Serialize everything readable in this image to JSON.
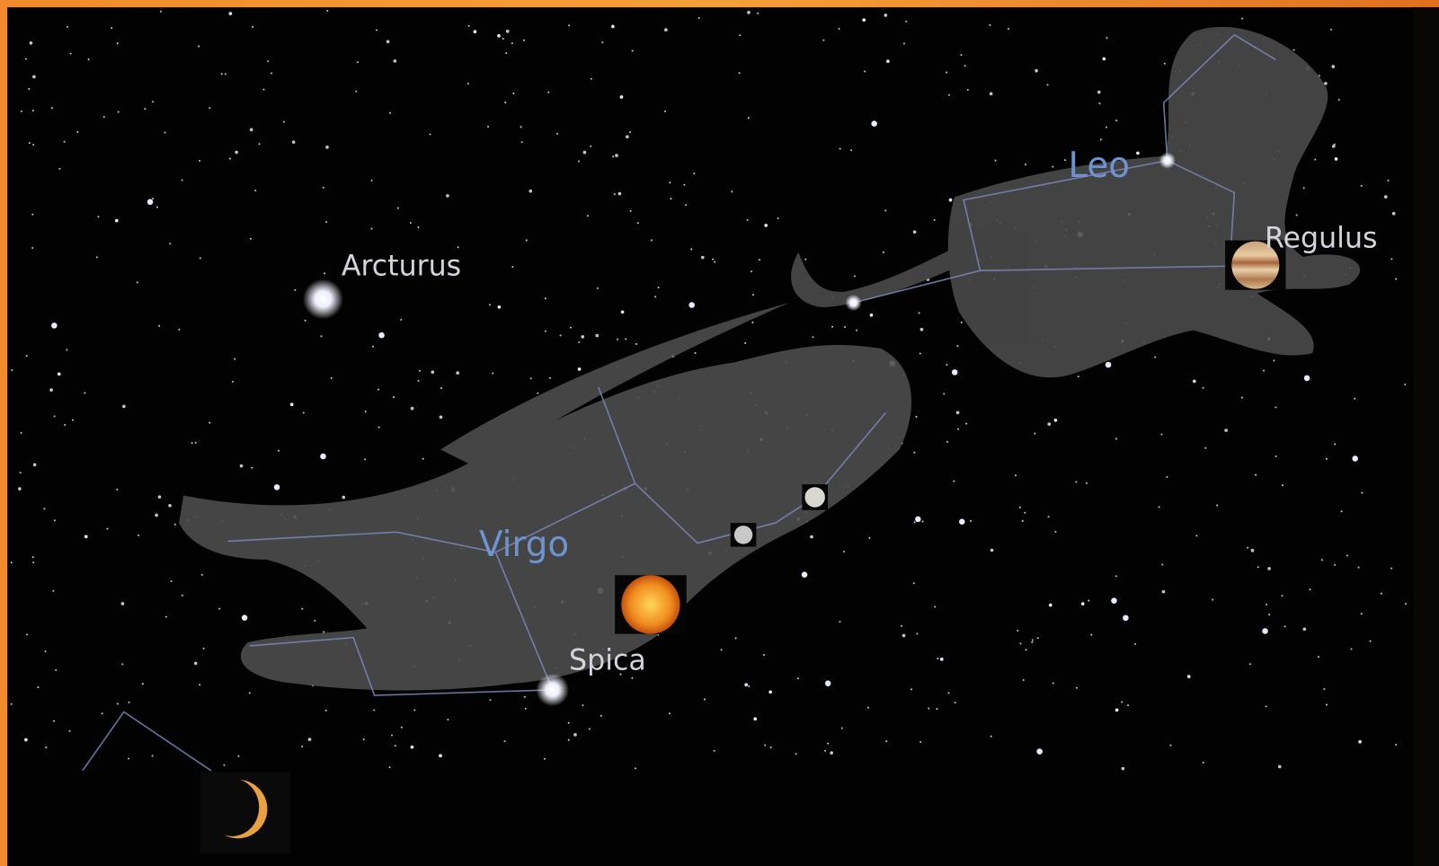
{
  "labels": {
    "arcturus": "Arcturus",
    "leo": "Leo",
    "regulus": "Regulus",
    "virgo": "Virgo",
    "spica": "Spica"
  }
}
